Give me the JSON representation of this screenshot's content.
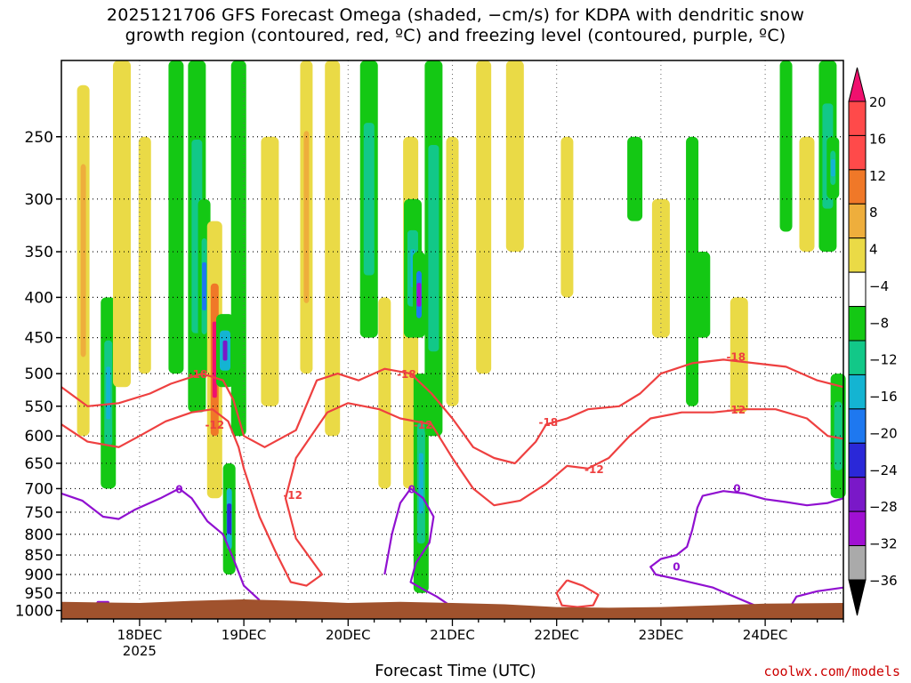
{
  "title": {
    "line1": "2025121706 GFS Forecast Omega (shaded, −cm/s) for KDPA with dendritic snow",
    "line2": "growth region (contoured, red, ºC) and freezing level (contoured, purple, ºC)"
  },
  "credit": "coolwx.com/models",
  "chart_data": {
    "type": "time-height cross-section",
    "xlabel": "Forecast Time (UTC)",
    "ylabel": "",
    "x_ticks": [
      "18DEC",
      "19DEC",
      "20DEC",
      "21DEC",
      "22DEC",
      "23DEC",
      "24DEC"
    ],
    "x_tick_year": "2025",
    "y_ticks": [
      "250",
      "300",
      "350",
      "400",
      "450",
      "500",
      "550",
      "600",
      "650",
      "700",
      "750",
      "800",
      "850",
      "900",
      "950",
      "1000"
    ],
    "y_ticks_values": [
      250,
      300,
      350,
      400,
      450,
      500,
      550,
      600,
      650,
      700,
      750,
      800,
      850,
      900,
      950,
      1000
    ],
    "ylim": [
      200,
      1025
    ],
    "xlim_days": [
      17.25,
      24.75
    ],
    "colorbar": {
      "labels": [
        "20",
        "16",
        "12",
        "8",
        "4",
        "−4",
        "−8",
        "−12",
        "−16",
        "−20",
        "−24",
        "−28",
        "−32",
        "−36"
      ],
      "colors": [
        "#f0106e",
        "#ff4a4a",
        "#f07828",
        "#eeae3c",
        "#eada46",
        "#ffffff",
        "#14c814",
        "#12c888",
        "#14b4d2",
        "#1e78f0",
        "#2a28d8",
        "#7a18c8",
        "#a010d2",
        "#aaaaaa"
      ]
    },
    "omega_streaks": [
      {
        "day": 17.46,
        "top": 215,
        "bottom": 600,
        "value": 9
      },
      {
        "day": 17.7,
        "top": 400,
        "bottom": 700,
        "value": -12
      },
      {
        "day": 17.83,
        "top": 200,
        "bottom": 520,
        "value": 6
      },
      {
        "day": 18.05,
        "top": 250,
        "bottom": 500,
        "value": 5
      },
      {
        "day": 18.35,
        "top": 200,
        "bottom": 500,
        "value": -6
      },
      {
        "day": 18.55,
        "top": 200,
        "bottom": 560,
        "value": -8
      },
      {
        "day": 18.62,
        "top": 300,
        "bottom": 500,
        "value": -16
      },
      {
        "day": 18.72,
        "top": 320,
        "bottom": 720,
        "value": 20
      },
      {
        "day": 18.82,
        "top": 420,
        "bottom": 520,
        "value": -24
      },
      {
        "day": 18.86,
        "top": 650,
        "bottom": 900,
        "value": -20
      },
      {
        "day": 18.95,
        "top": 200,
        "bottom": 600,
        "value": -6
      },
      {
        "day": 19.25,
        "top": 250,
        "bottom": 550,
        "value": 6
      },
      {
        "day": 19.6,
        "top": 200,
        "bottom": 500,
        "value": 8
      },
      {
        "day": 19.85,
        "top": 200,
        "bottom": 600,
        "value": 5
      },
      {
        "day": 20.2,
        "top": 200,
        "bottom": 450,
        "value": -8
      },
      {
        "day": 20.35,
        "top": 400,
        "bottom": 700,
        "value": 5
      },
      {
        "day": 20.6,
        "top": 250,
        "bottom": 700,
        "value": 6
      },
      {
        "day": 20.62,
        "top": 300,
        "bottom": 450,
        "value": -12
      },
      {
        "day": 20.68,
        "top": 350,
        "bottom": 450,
        "value": -28
      },
      {
        "day": 20.7,
        "top": 500,
        "bottom": 950,
        "value": -12
      },
      {
        "day": 20.82,
        "top": 200,
        "bottom": 600,
        "value": -8
      },
      {
        "day": 21.0,
        "top": 250,
        "bottom": 550,
        "value": 5
      },
      {
        "day": 21.3,
        "top": 200,
        "bottom": 500,
        "value": 6
      },
      {
        "day": 21.6,
        "top": 200,
        "bottom": 350,
        "value": 5
      },
      {
        "day": 22.1,
        "top": 250,
        "bottom": 400,
        "value": 5
      },
      {
        "day": 22.75,
        "top": 250,
        "bottom": 320,
        "value": -6
      },
      {
        "day": 23.0,
        "top": 300,
        "bottom": 450,
        "value": 5
      },
      {
        "day": 23.3,
        "top": 250,
        "bottom": 550,
        "value": -6
      },
      {
        "day": 23.4,
        "top": 350,
        "bottom": 450,
        "value": -6
      },
      {
        "day": 23.75,
        "top": 400,
        "bottom": 560,
        "value": 5
      },
      {
        "day": 24.2,
        "top": 200,
        "bottom": 330,
        "value": -6
      },
      {
        "day": 24.4,
        "top": 250,
        "bottom": 350,
        "value": 5
      },
      {
        "day": 24.6,
        "top": 200,
        "bottom": 350,
        "value": -8
      },
      {
        "day": 24.65,
        "top": 250,
        "bottom": 300,
        "value": -12
      },
      {
        "day": 24.7,
        "top": 500,
        "bottom": 720,
        "value": -8
      }
    ],
    "contours": [
      {
        "label": "-18",
        "color": "#ee4040",
        "label_points": [
          [
            18.56,
            500
          ],
          [
            20.56,
            500
          ],
          [
            21.92,
            575
          ],
          [
            23.72,
            475
          ]
        ],
        "points": [
          [
            17.25,
            520
          ],
          [
            17.5,
            550
          ],
          [
            17.8,
            545
          ],
          [
            18.1,
            530
          ],
          [
            18.3,
            515
          ],
          [
            18.6,
            500
          ],
          [
            18.8,
            510
          ],
          [
            18.9,
            540
          ],
          [
            19.0,
            600
          ],
          [
            19.2,
            620
          ],
          [
            19.5,
            590
          ],
          [
            19.7,
            510
          ],
          [
            19.9,
            500
          ],
          [
            20.1,
            510
          ],
          [
            20.35,
            493
          ],
          [
            20.6,
            500
          ],
          [
            20.8,
            530
          ],
          [
            21.0,
            570
          ],
          [
            21.2,
            620
          ],
          [
            21.4,
            640
          ],
          [
            21.6,
            650
          ],
          [
            21.8,
            610
          ],
          [
            21.9,
            580
          ],
          [
            22.1,
            570
          ],
          [
            22.3,
            555
          ],
          [
            22.6,
            550
          ],
          [
            22.8,
            530
          ],
          [
            23.0,
            500
          ],
          [
            23.3,
            485
          ],
          [
            23.6,
            480
          ],
          [
            23.9,
            485
          ],
          [
            24.2,
            490
          ],
          [
            24.5,
            510
          ],
          [
            24.75,
            520
          ]
        ]
      },
      {
        "label": "-12",
        "color": "#ee4040",
        "label_points": [
          [
            18.72,
            580
          ],
          [
            19.47,
            712
          ],
          [
            20.72,
            580
          ],
          [
            22.36,
            660
          ],
          [
            23.72,
            555
          ]
        ],
        "points": [
          [
            17.25,
            580
          ],
          [
            17.5,
            610
          ],
          [
            17.8,
            620
          ],
          [
            18.0,
            600
          ],
          [
            18.25,
            575
          ],
          [
            18.5,
            560
          ],
          [
            18.7,
            555
          ],
          [
            18.85,
            575
          ],
          [
            18.95,
            620
          ],
          [
            19.0,
            660
          ],
          [
            19.15,
            760
          ],
          [
            19.3,
            840
          ],
          [
            19.45,
            920
          ],
          [
            19.6,
            930
          ],
          [
            19.75,
            900
          ],
          [
            19.5,
            810
          ],
          [
            19.4,
            720
          ],
          [
            19.5,
            640
          ],
          [
            19.8,
            560
          ],
          [
            20.0,
            545
          ],
          [
            20.3,
            555
          ],
          [
            20.5,
            570
          ],
          [
            20.8,
            580
          ],
          [
            21.0,
            640
          ],
          [
            21.2,
            700
          ],
          [
            21.4,
            735
          ],
          [
            21.65,
            725
          ],
          [
            21.9,
            690
          ],
          [
            22.1,
            655
          ],
          [
            22.3,
            660
          ],
          [
            22.5,
            640
          ],
          [
            22.7,
            600
          ],
          [
            22.9,
            570
          ],
          [
            23.2,
            560
          ],
          [
            23.5,
            560
          ],
          [
            23.8,
            555
          ],
          [
            24.1,
            555
          ],
          [
            24.4,
            570
          ],
          [
            24.6,
            600
          ],
          [
            24.75,
            605
          ]
        ]
      },
      {
        "label": "-12",
        "color": "#ee4040",
        "label_points": [],
        "points": [
          [
            22.1,
            915
          ],
          [
            22.25,
            930
          ],
          [
            22.4,
            955
          ],
          [
            22.35,
            985
          ],
          [
            22.2,
            990
          ],
          [
            22.05,
            985
          ],
          [
            22.0,
            950
          ],
          [
            22.1,
            915
          ]
        ]
      },
      {
        "label": "0",
        "color": "#9010d0",
        "label_points": [
          [
            18.38,
            700
          ],
          [
            20.61,
            700
          ],
          [
            23.73,
            698
          ],
          [
            23.15,
            878
          ]
        ],
        "points": [
          [
            17.25,
            710
          ],
          [
            17.45,
            725
          ],
          [
            17.65,
            760
          ],
          [
            17.8,
            765
          ],
          [
            17.95,
            745
          ],
          [
            18.2,
            720
          ],
          [
            18.38,
            700
          ],
          [
            18.5,
            720
          ],
          [
            18.65,
            770
          ],
          [
            18.8,
            800
          ],
          [
            18.9,
            860
          ],
          [
            19.0,
            930
          ],
          [
            19.15,
            970
          ]
        ]
      },
      {
        "label": "0",
        "color": "#9010d0",
        "label_points": [],
        "points": [
          [
            20.35,
            900
          ],
          [
            20.42,
            800
          ],
          [
            20.5,
            730
          ],
          [
            20.6,
            700
          ],
          [
            20.72,
            720
          ],
          [
            20.82,
            760
          ],
          [
            20.78,
            820
          ],
          [
            20.65,
            870
          ],
          [
            20.6,
            920
          ],
          [
            20.72,
            940
          ],
          [
            20.85,
            960
          ],
          [
            20.95,
            980
          ]
        ]
      },
      {
        "label": "0",
        "color": "#9010d0",
        "label_points": [],
        "points": [
          [
            24.75,
            720
          ],
          [
            24.6,
            730
          ],
          [
            24.4,
            735
          ],
          [
            24.2,
            728
          ],
          [
            24.0,
            722
          ],
          [
            23.8,
            710
          ],
          [
            23.6,
            705
          ],
          [
            23.4,
            715
          ],
          [
            23.35,
            740
          ],
          [
            23.3,
            790
          ],
          [
            23.25,
            830
          ],
          [
            23.15,
            850
          ],
          [
            23.0,
            860
          ],
          [
            22.9,
            880
          ],
          [
            22.95,
            900
          ],
          [
            23.2,
            915
          ],
          [
            23.5,
            935
          ],
          [
            23.7,
            960
          ],
          [
            23.9,
            985
          ],
          [
            24.1,
            995
          ]
        ]
      },
      {
        "label": "0",
        "color": "#9010d0",
        "label_points": [],
        "points": [
          [
            24.75,
            935
          ],
          [
            24.5,
            945
          ],
          [
            24.3,
            960
          ],
          [
            24.25,
            985
          ],
          [
            24.3,
            1000
          ]
        ]
      },
      {
        "label": "0",
        "color": "#9010d0",
        "label_points": [],
        "points": [
          [
            17.55,
            995
          ],
          [
            17.6,
            975
          ],
          [
            17.7,
            975
          ],
          [
            17.72,
            995
          ]
        ]
      }
    ],
    "surface": {
      "color": "#a0522d",
      "pressure_points": [
        [
          17.25,
          975
        ],
        [
          18.0,
          978
        ],
        [
          18.5,
          972
        ],
        [
          19.0,
          968
        ],
        [
          19.5,
          972
        ],
        [
          20.0,
          978
        ],
        [
          20.5,
          975
        ],
        [
          21.0,
          978
        ],
        [
          21.5,
          982
        ],
        [
          22.0,
          990
        ],
        [
          22.5,
          992
        ],
        [
          23.0,
          990
        ],
        [
          23.5,
          985
        ],
        [
          24.0,
          980
        ],
        [
          24.75,
          978
        ]
      ]
    }
  }
}
